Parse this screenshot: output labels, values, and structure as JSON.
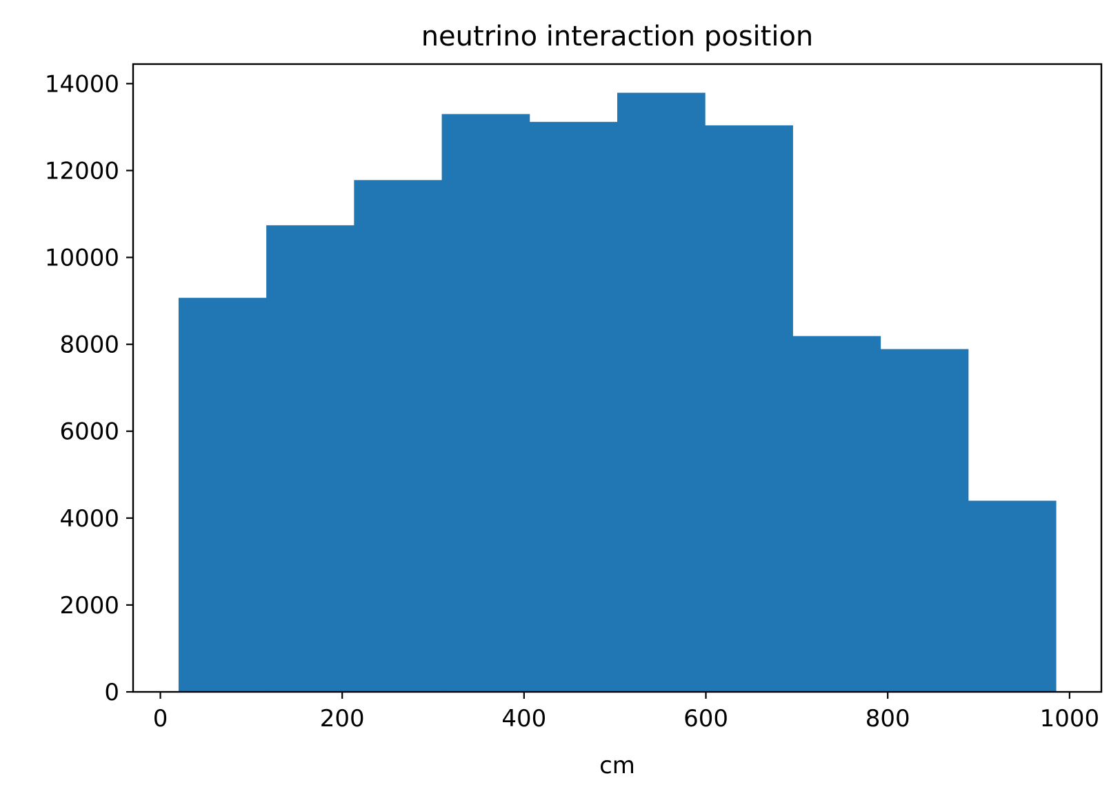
{
  "chart_data": {
    "type": "bar",
    "title": "neutrino interaction position",
    "xlabel": "cm",
    "ylabel": "",
    "bin_edges": [
      20,
      116.5,
      213,
      309.5,
      406,
      502.5,
      599,
      695.5,
      792,
      888.5,
      985
    ],
    "values": [
      9070,
      10740,
      11780,
      13300,
      13120,
      13790,
      13040,
      8190,
      7890,
      4400
    ],
    "xlim": [
      -30,
      1035
    ],
    "ylim": [
      0,
      14450
    ],
    "xticks": [
      0,
      200,
      400,
      600,
      800,
      1000
    ],
    "xtick_labels": [
      "0",
      "200",
      "400",
      "600",
      "800",
      "1000"
    ],
    "yticks": [
      0,
      2000,
      4000,
      6000,
      8000,
      10000,
      12000,
      14000
    ],
    "ytick_labels": [
      "0",
      "2000",
      "4000",
      "6000",
      "8000",
      "10000",
      "12000",
      "14000"
    ],
    "bar_color": "#2077b4",
    "grid": false,
    "legend": "none"
  }
}
